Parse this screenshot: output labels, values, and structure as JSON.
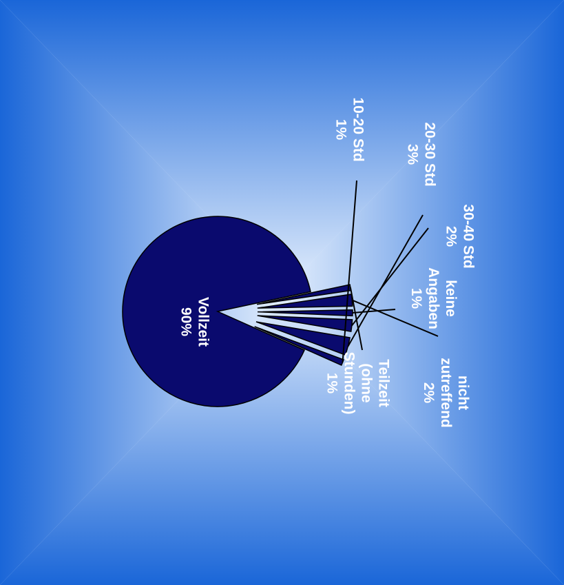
{
  "chart_data": {
    "type": "pie",
    "rotation": "rotated 90 degrees clockwise",
    "slices": [
      {
        "label": "Vollzeit",
        "value": 90,
        "value_text": "90%",
        "lines": [
          "Vollzeit",
          "90%"
        ]
      },
      {
        "label": "Teilzeit (ohne Stunden)",
        "value": 1,
        "value_text": "1%",
        "lines": [
          "Teilzeit",
          "(ohne",
          "Stunden)",
          "1%"
        ]
      },
      {
        "label": "nicht zutreffend",
        "value": 2,
        "value_text": "2%",
        "lines": [
          "nicht",
          "zutreffend",
          "2%"
        ]
      },
      {
        "label": "keine Angaben",
        "value": 1,
        "value_text": "1%",
        "lines": [
          "keine",
          "Angaben",
          "1%"
        ]
      },
      {
        "label": "30-40 Std",
        "value": 2,
        "value_text": "2%",
        "lines": [
          "30-40 Std",
          "2%"
        ]
      },
      {
        "label": "20-30 Std",
        "value": 3,
        "value_text": "3%",
        "lines": [
          "20-30 Std",
          "3%"
        ]
      },
      {
        "label": "10-20 Std",
        "value": 1,
        "value_text": "1%",
        "lines": [
          "10-20 Std",
          "1%"
        ]
      }
    ],
    "colors": {
      "slice_fill": "#0a0a6e",
      "slice_stroke": "#000000",
      "label_text": "#ffffff",
      "background_edge": "#1a66d8",
      "background_center": "#e4effd"
    },
    "legend": "none"
  }
}
